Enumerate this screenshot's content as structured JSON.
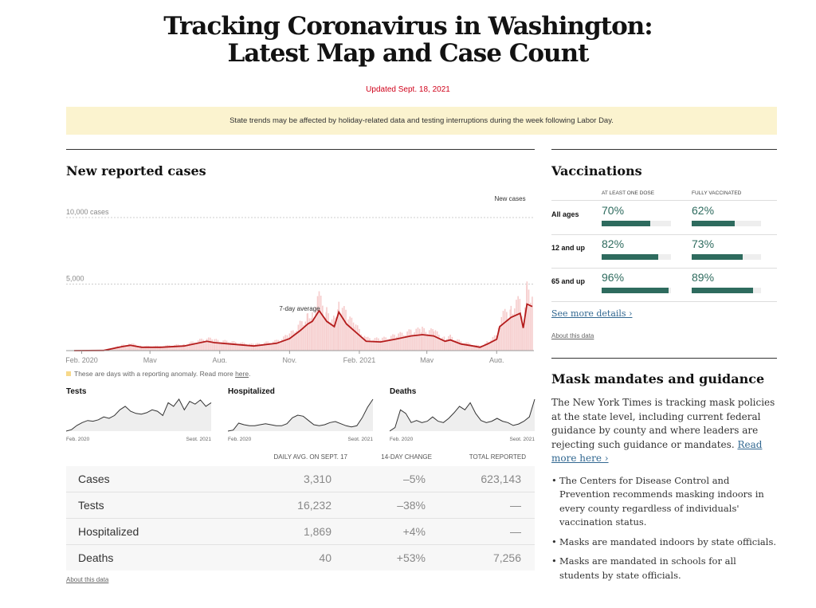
{
  "header": {
    "title_line1": "Tracking Coronavirus in Washington:",
    "title_line2": "Latest Map and Case Count",
    "updated": "Updated Sept. 18, 2021"
  },
  "banner": "State trends may be affected by holiday-related data and testing interruptions during the week following Labor Day.",
  "cases_section": {
    "title": "New reported cases",
    "anomaly_note": "These are days with a reporting anomaly. Read more ",
    "anomaly_link": "here",
    "anomaly_end": ".",
    "about": "About this data"
  },
  "chart_data": [
    {
      "type": "area",
      "title": "New reported cases",
      "y_ticks": [
        {
          "value": 10000,
          "label": "10,000 cases"
        },
        {
          "value": 5000,
          "label": "5,000"
        }
      ],
      "ylim": [
        0,
        10500
      ],
      "x_ticks": [
        {
          "date": "2020-02-01",
          "label": "Feb. 2020"
        },
        {
          "date": "2020-05-01",
          "label": "May"
        },
        {
          "date": "2020-08-01",
          "label": "Aug."
        },
        {
          "date": "2020-11-01",
          "label": "Nov."
        },
        {
          "date": "2021-02-01",
          "label": "Feb. 2021"
        },
        {
          "date": "2021-05-01",
          "label": "May"
        },
        {
          "date": "2021-08-01",
          "label": "Aug."
        }
      ],
      "xlim": [
        "2020-01-22",
        "2021-09-17"
      ],
      "annotations": [
        "7-day average",
        "New cases"
      ],
      "series": [
        {
          "name": "7-day average",
          "color": "#b41c1c",
          "points": [
            [
              "2020-01-22",
              0
            ],
            [
              "2020-03-01",
              10
            ],
            [
              "2020-03-25",
              300
            ],
            [
              "2020-04-05",
              400
            ],
            [
              "2020-04-20",
              250
            ],
            [
              "2020-05-15",
              250
            ],
            [
              "2020-06-15",
              350
            ],
            [
              "2020-07-15",
              700
            ],
            [
              "2020-07-25",
              600
            ],
            [
              "2020-08-15",
              500
            ],
            [
              "2020-09-15",
              350
            ],
            [
              "2020-10-15",
              550
            ],
            [
              "2020-11-01",
              900
            ],
            [
              "2020-11-15",
              1500
            ],
            [
              "2020-11-25",
              2000
            ],
            [
              "2020-12-01",
              2200
            ],
            [
              "2020-12-10",
              3000
            ],
            [
              "2020-12-20",
              2200
            ],
            [
              "2020-12-30",
              1800
            ],
            [
              "2021-01-05",
              2900
            ],
            [
              "2021-01-15",
              2000
            ],
            [
              "2021-01-25",
              1500
            ],
            [
              "2021-02-10",
              700
            ],
            [
              "2021-03-01",
              650
            ],
            [
              "2021-03-20",
              850
            ],
            [
              "2021-04-10",
              1100
            ],
            [
              "2021-04-25",
              1200
            ],
            [
              "2021-05-10",
              1100
            ],
            [
              "2021-05-25",
              700
            ],
            [
              "2021-06-01",
              800
            ],
            [
              "2021-06-15",
              500
            ],
            [
              "2021-07-01",
              350
            ],
            [
              "2021-07-10",
              250
            ],
            [
              "2021-07-20",
              500
            ],
            [
              "2021-08-01",
              850
            ],
            [
              "2021-08-05",
              1800
            ],
            [
              "2021-08-20",
              2500
            ],
            [
              "2021-09-01",
              2800
            ],
            [
              "2021-09-05",
              1700
            ],
            [
              "2021-09-10",
              3500
            ],
            [
              "2021-09-17",
              3310
            ]
          ]
        }
      ]
    },
    {
      "type": "line",
      "title": "Tests",
      "x_labels": [
        "Feb. 2020",
        "Sept. 2021"
      ],
      "values": [
        0,
        2,
        8,
        12,
        15,
        14,
        16,
        20,
        18,
        22,
        30,
        35,
        28,
        25,
        24,
        26,
        30,
        28,
        22,
        40,
        35,
        45,
        30,
        42,
        38,
        44,
        35,
        40
      ]
    },
    {
      "type": "line",
      "title": "Hospitalized",
      "x_labels": [
        "Feb. 2020",
        "Sept. 2021"
      ],
      "values": [
        0,
        2,
        15,
        12,
        10,
        10,
        12,
        14,
        12,
        10,
        10,
        14,
        25,
        30,
        28,
        20,
        12,
        10,
        12,
        16,
        18,
        14,
        10,
        8,
        10,
        25,
        45,
        60
      ]
    },
    {
      "type": "line",
      "title": "Deaths",
      "x_labels": [
        "Feb. 2020",
        "Sept. 2021"
      ],
      "values": [
        0,
        5,
        30,
        25,
        12,
        15,
        12,
        14,
        20,
        14,
        12,
        18,
        26,
        35,
        30,
        40,
        25,
        15,
        12,
        14,
        18,
        14,
        12,
        8,
        10,
        14,
        20,
        45
      ]
    }
  ],
  "table": {
    "headers": [
      "DAILY AVG. ON SEPT. 17",
      "14-DAY CHANGE",
      "TOTAL REPORTED"
    ],
    "rows": [
      [
        "Cases",
        "3,310",
        "–5%",
        "623,143"
      ],
      [
        "Tests",
        "16,232",
        "–38%",
        "—"
      ],
      [
        "Hospitalized",
        "1,869",
        "+4%",
        "—"
      ],
      [
        "Deaths",
        "40",
        "+53%",
        "7,256"
      ]
    ],
    "about": "About this data"
  },
  "vaccinations": {
    "title": "Vaccinations",
    "col1": "AT LEAST ONE DOSE",
    "col2": "FULLY VACCINATED",
    "color": "#2e6b5e",
    "rows": [
      {
        "label": "All ages",
        "one": "70%",
        "one_v": 70,
        "full": "62%",
        "full_v": 62
      },
      {
        "label": "12 and up",
        "one": "82%",
        "one_v": 82,
        "full": "73%",
        "full_v": 73
      },
      {
        "label": "65 and up",
        "one": "96%",
        "one_v": 96,
        "full": "89%",
        "full_v": 89
      }
    ],
    "details_link": "See more details ›",
    "about": "About this data"
  },
  "masks": {
    "title": "Mask mandates and guidance",
    "intro": "The New York Times is tracking mask policies at the state level, including current federal guidance by county and where leaders are rejecting such guidance or mandates. ",
    "read_more": "Read more here ›",
    "bullets": [
      "The Centers for Disease Control and Prevention recommends masking indoors in every county regardless of individuals' vaccination status.",
      "Masks are mandated indoors by state officials.",
      "Masks are mandated in schools for all students by state officials."
    ]
  }
}
